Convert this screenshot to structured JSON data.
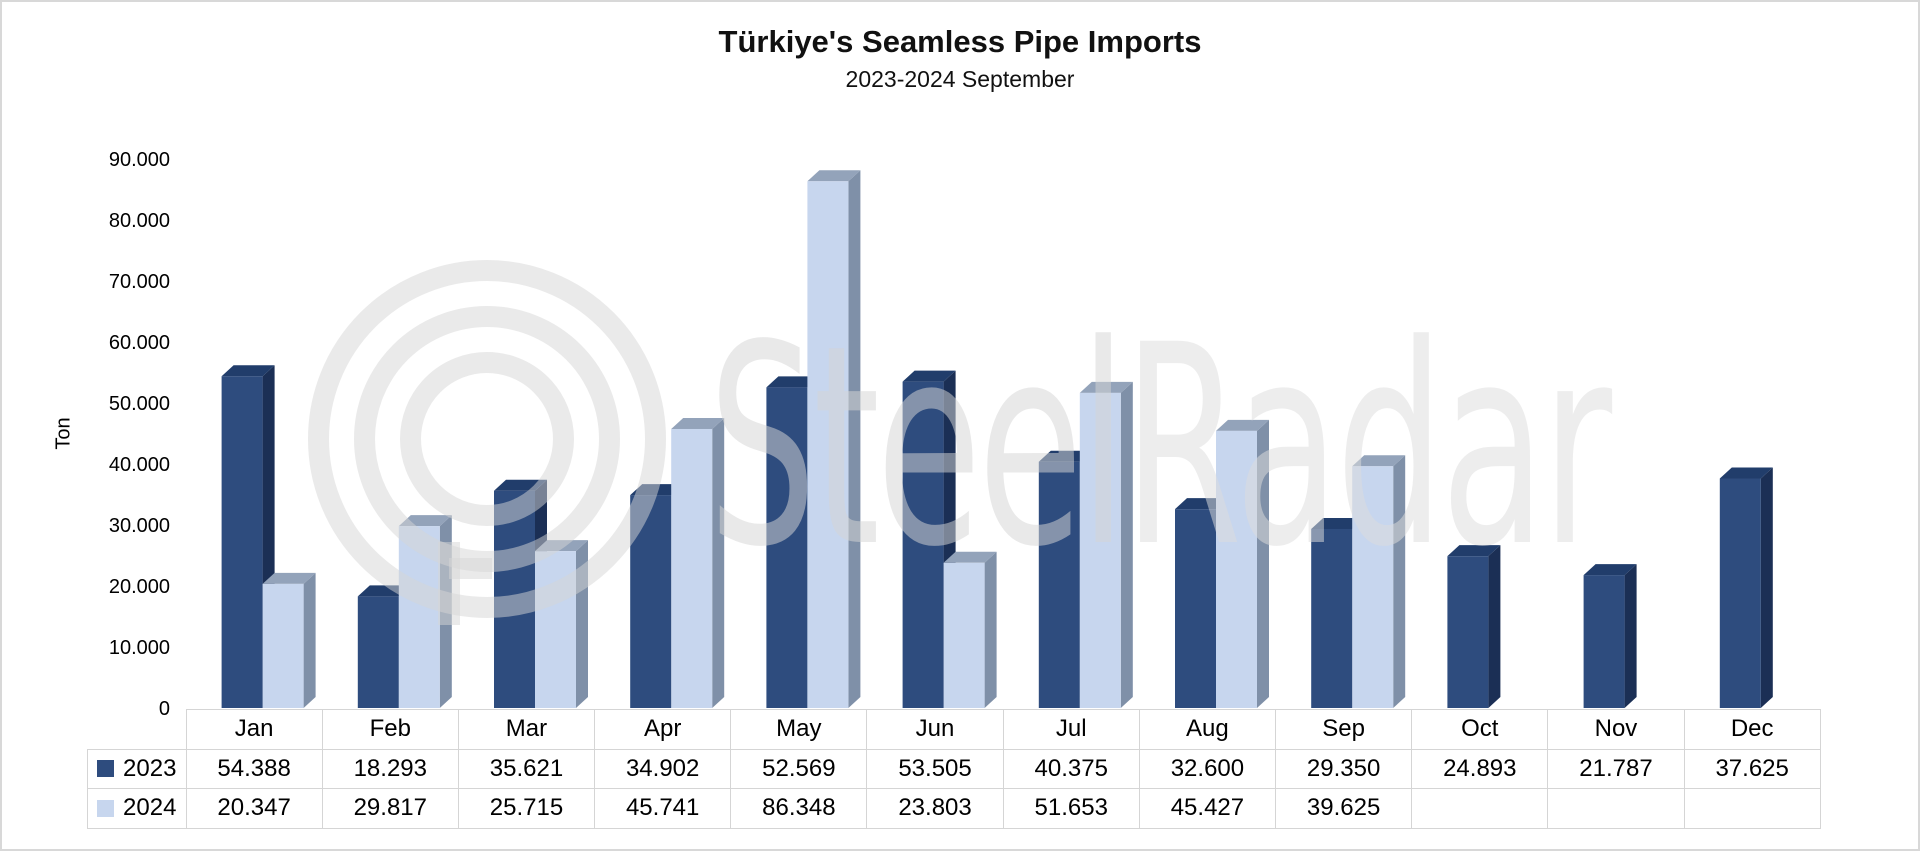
{
  "header": {
    "title": "Türkiye's Seamless Pipe Imports",
    "subtitle": "2023-2024 September"
  },
  "watermark": {
    "steel": "Steel",
    "radar": "Radar",
    "logo": "radar-rings-logo"
  },
  "chart_data": {
    "type": "bar",
    "style": "3d-column",
    "title": "Türkiye's Seamless Pipe Imports",
    "subtitle": "2023-2024 September",
    "xlabel": "",
    "ylabel": "Ton",
    "ylim": [
      0,
      90000
    ],
    "ytick_step": 10000,
    "ytick_labels": [
      "0",
      "10.000",
      "20.000",
      "30.000",
      "40.000",
      "50.000",
      "60.000",
      "70.000",
      "80.000",
      "90.000"
    ],
    "grid": false,
    "legend_position": "table-left",
    "categories": [
      "Jan",
      "Feb",
      "Mar",
      "Apr",
      "May",
      "Jun",
      "Jul",
      "Aug",
      "Sep",
      "Oct",
      "Nov",
      "Dec"
    ],
    "series": [
      {
        "name": "2023",
        "color_front": "#2E4C7E",
        "color_top": "#213D6B",
        "color_side": "#1B2F55",
        "values": [
          54388,
          18293,
          35621,
          34902,
          52569,
          53505,
          40375,
          32600,
          29350,
          24893,
          21787,
          37625
        ],
        "labels": [
          "54.388",
          "18.293",
          "35.621",
          "34.902",
          "52.569",
          "53.505",
          "40.375",
          "32.600",
          "29.350",
          "24.893",
          "21.787",
          "37.625"
        ]
      },
      {
        "name": "2024",
        "color_front": "#C7D6EE",
        "color_top": "#93A3BA",
        "color_side": "#7F90A8",
        "values": [
          20347,
          29817,
          25715,
          45741,
          86348,
          23803,
          51653,
          45427,
          39625,
          null,
          null,
          null
        ],
        "labels": [
          "20.347",
          "29.817",
          "25.715",
          "45.741",
          "86.348",
          "23.803",
          "51.653",
          "45.427",
          "39.625",
          "",
          "",
          ""
        ]
      }
    ]
  },
  "colors": {
    "table_border": "#d5d5d5",
    "page_border": "#d8d8d8",
    "watermark_gray": "#ececec",
    "title_text": "#111111"
  }
}
